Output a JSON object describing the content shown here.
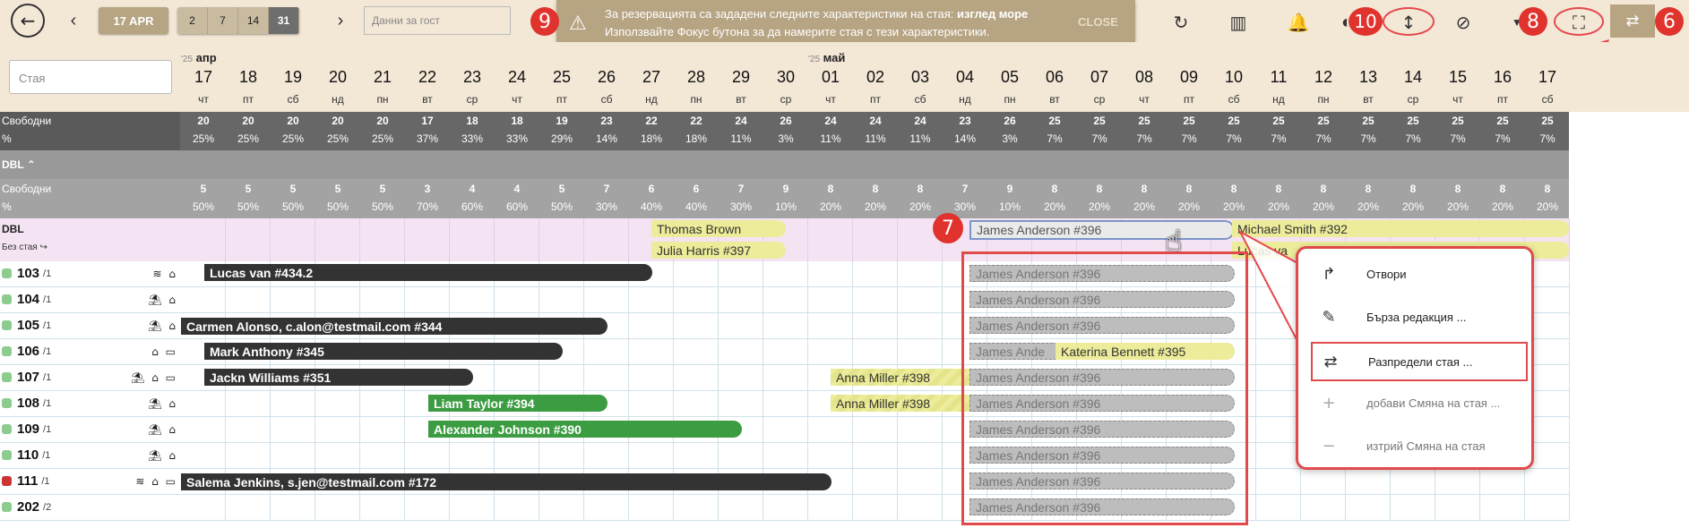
{
  "toolbar": {
    "date": "17 APR",
    "zoom": [
      "2",
      "7",
      "14",
      "31"
    ],
    "zoom_selected": "31",
    "guest_placeholder": "Данни за гост"
  },
  "notification": {
    "line1_prefix": "За резервацията са зададени следните характеристики на стая: ",
    "line1_bold": "изглед море",
    "line2": "Използвайте Фокус бутона за да намерите стая с тези характеристики.",
    "close": "CLOSE"
  },
  "badges": {
    "b6": "6",
    "b7": "7",
    "b8": "8",
    "b9": "9",
    "b10": "10"
  },
  "search_placeholder": "Стая",
  "months": [
    {
      "year": "'25",
      "name": "апр"
    },
    {
      "year": "'25",
      "name": "май"
    }
  ],
  "days": [
    {
      "d": "17",
      "w": "чт"
    },
    {
      "d": "18",
      "w": "пт"
    },
    {
      "d": "19",
      "w": "сб"
    },
    {
      "d": "20",
      "w": "нд"
    },
    {
      "d": "21",
      "w": "пн"
    },
    {
      "d": "22",
      "w": "вт"
    },
    {
      "d": "23",
      "w": "ср"
    },
    {
      "d": "24",
      "w": "чт"
    },
    {
      "d": "25",
      "w": "пт"
    },
    {
      "d": "26",
      "w": "сб"
    },
    {
      "d": "27",
      "w": "нд"
    },
    {
      "d": "28",
      "w": "пн"
    },
    {
      "d": "29",
      "w": "вт"
    },
    {
      "d": "30",
      "w": "ср"
    },
    {
      "d": "01",
      "w": "чт"
    },
    {
      "d": "02",
      "w": "пт"
    },
    {
      "d": "03",
      "w": "сб"
    },
    {
      "d": "04",
      "w": "нд"
    },
    {
      "d": "05",
      "w": "пн"
    },
    {
      "d": "06",
      "w": "вт"
    },
    {
      "d": "07",
      "w": "ср"
    },
    {
      "d": "08",
      "w": "чт"
    },
    {
      "d": "09",
      "w": "пт"
    },
    {
      "d": "10",
      "w": "сб"
    },
    {
      "d": "11",
      "w": "нд"
    },
    {
      "d": "12",
      "w": "пн"
    },
    {
      "d": "13",
      "w": "вт"
    },
    {
      "d": "14",
      "w": "ср"
    },
    {
      "d": "15",
      "w": "чт"
    },
    {
      "d": "16",
      "w": "пт"
    },
    {
      "d": "17",
      "w": "сб"
    }
  ],
  "overall": {
    "label_free": "Свободни",
    "label_pct": "%",
    "free": [
      "20",
      "20",
      "20",
      "20",
      "20",
      "17",
      "18",
      "18",
      "19",
      "23",
      "22",
      "22",
      "24",
      "26",
      "24",
      "24",
      "24",
      "23",
      "26",
      "25",
      "25",
      "25",
      "25",
      "25",
      "25",
      "25",
      "25",
      "25",
      "25",
      "25",
      "25"
    ],
    "pct": [
      "25%",
      "25%",
      "25%",
      "25%",
      "25%",
      "37%",
      "33%",
      "33%",
      "29%",
      "14%",
      "18%",
      "18%",
      "11%",
      "3%",
      "11%",
      "11%",
      "11%",
      "14%",
      "3%",
      "7%",
      "7%",
      "7%",
      "7%",
      "7%",
      "7%",
      "7%",
      "7%",
      "7%",
      "7%",
      "7%",
      "7%"
    ]
  },
  "group": {
    "name": "DBL",
    "chevron": "^",
    "label_free": "Свободни",
    "label_pct": "%",
    "free": [
      "5",
      "5",
      "5",
      "5",
      "5",
      "3",
      "4",
      "4",
      "5",
      "7",
      "6",
      "6",
      "7",
      "9",
      "8",
      "8",
      "8",
      "7",
      "9",
      "8",
      "8",
      "8",
      "8",
      "8",
      "8",
      "8",
      "8",
      "8",
      "8",
      "8",
      "8"
    ],
    "pct": [
      "50%",
      "50%",
      "50%",
      "50%",
      "50%",
      "70%",
      "60%",
      "60%",
      "50%",
      "30%",
      "40%",
      "40%",
      "30%",
      "10%",
      "20%",
      "20%",
      "20%",
      "30%",
      "10%",
      "20%",
      "20%",
      "20%",
      "20%",
      "20%",
      "20%",
      "20%",
      "20%",
      "20%",
      "20%",
      "20%",
      "20%"
    ]
  },
  "unassigned": {
    "label": "DBL",
    "sub": "Без стая"
  },
  "rooms": [
    {
      "num": "103",
      "cap": "/1",
      "icons": "≋ ⌂",
      "status": "#8ccc8e"
    },
    {
      "num": "104",
      "cap": "/1",
      "icons": "⛱ ⌂",
      "status": "#8ccc8e"
    },
    {
      "num": "105",
      "cap": "/1",
      "icons": "⛱ ⌂",
      "status": "#8ccc8e"
    },
    {
      "num": "106",
      "cap": "/1",
      "icons": "⌂ ▭",
      "status": "#8ccc8e"
    },
    {
      "num": "107",
      "cap": "/1",
      "icons": "⛱ ⌂ ▭",
      "status": "#8ccc8e"
    },
    {
      "num": "108",
      "cap": "/1",
      "icons": "⛱ ⌂",
      "status": "#8ccc8e"
    },
    {
      "num": "109",
      "cap": "/1",
      "icons": "⛱ ⌂",
      "status": "#8ccc8e"
    },
    {
      "num": "110",
      "cap": "/1",
      "icons": "⛱ ⌂",
      "status": "#8ccc8e"
    },
    {
      "num": "111",
      "cap": "/1",
      "icons": "≋ ⌂ ▭",
      "status": "#cc3333"
    },
    {
      "num": "202",
      "cap": "/2",
      "icons": "",
      "status": "#8ccc8e"
    }
  ],
  "bookings": {
    "thomas": "Thomas Brown",
    "julia": "Julia Harris #397",
    "james_sel": "James Anderson #396",
    "michael": "Michael Smith #392",
    "lucas_v": "Lucas va",
    "lucas": "Lucas van #434.2",
    "carmen": "Carmen Alonso, c.alon@testmail.com #344",
    "mark": "Mark Anthony #345",
    "jackn": "Jackn Williams #351",
    "liam": "Liam Taylor #394",
    "alexander": "Alexander Johnson #390",
    "salema": "Salema Jenkins, s.jen@testmail.com #172",
    "anna1": "Anna Miller #398",
    "anna2": "Anna Miller #398",
    "katerina": "Katerina Bennett #395",
    "ghost": "James Anderson #396",
    "ghost_short": "James Ande"
  },
  "context_menu": {
    "open": "Отвори",
    "quick_edit": "Бърза редакция ...",
    "assign_room": "Разпредели стая ...",
    "add_change": "добави Смяна на стая ...",
    "delete_change": "изтрий Смяна на стая"
  },
  "colors": {
    "accent": "#b6a483",
    "annotation_red": "#e0332e",
    "dark_booking": "#333333",
    "green_booking": "#3c9c42",
    "yellow_booking": "#ecec9a"
  }
}
